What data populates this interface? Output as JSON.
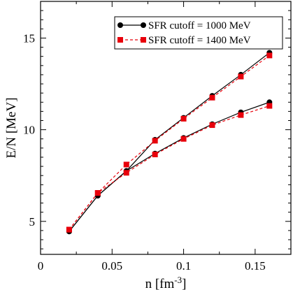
{
  "chart_data": {
    "type": "line",
    "xlabel": "n [fm",
    "xlabel_sup": "-3",
    "xlabel_end": "]",
    "ylabel": "E/N [MeV]",
    "xlim": [
      0,
      0.175
    ],
    "ylim": [
      3.2,
      17
    ],
    "xticks": [
      0,
      0.05,
      0.1,
      0.15
    ],
    "xtick_labels": [
      "0",
      "0.05",
      "0.1",
      "0.15"
    ],
    "yticks": [
      5,
      10,
      15
    ],
    "ytick_labels": [
      "5",
      "10",
      "15"
    ],
    "grid": false,
    "legend_position": "top-right",
    "x": [
      0.02,
      0.04,
      0.06,
      0.08,
      0.1,
      0.12,
      0.14,
      0.16
    ],
    "series": [
      {
        "name": "SFR cutoff = 1000 MeV",
        "color": "#000000",
        "marker": "circle",
        "dash": "solid",
        "curves": [
          [
            4.45,
            6.4,
            7.75,
            8.7,
            9.55,
            10.3,
            10.95,
            11.5
          ],
          [
            4.45,
            6.4,
            7.75,
            9.45,
            10.65,
            11.85,
            13.0,
            14.2
          ]
        ]
      },
      {
        "name": "SFR cutoff = 1400 MeV",
        "color": "#e8000b",
        "marker": "square",
        "dash": "dashed",
        "curves": [
          [
            4.55,
            6.55,
            7.65,
            8.65,
            9.5,
            10.25,
            10.8,
            11.3
          ],
          [
            4.55,
            6.55,
            8.1,
            9.4,
            10.6,
            11.75,
            12.9,
            14.05
          ]
        ]
      }
    ]
  }
}
